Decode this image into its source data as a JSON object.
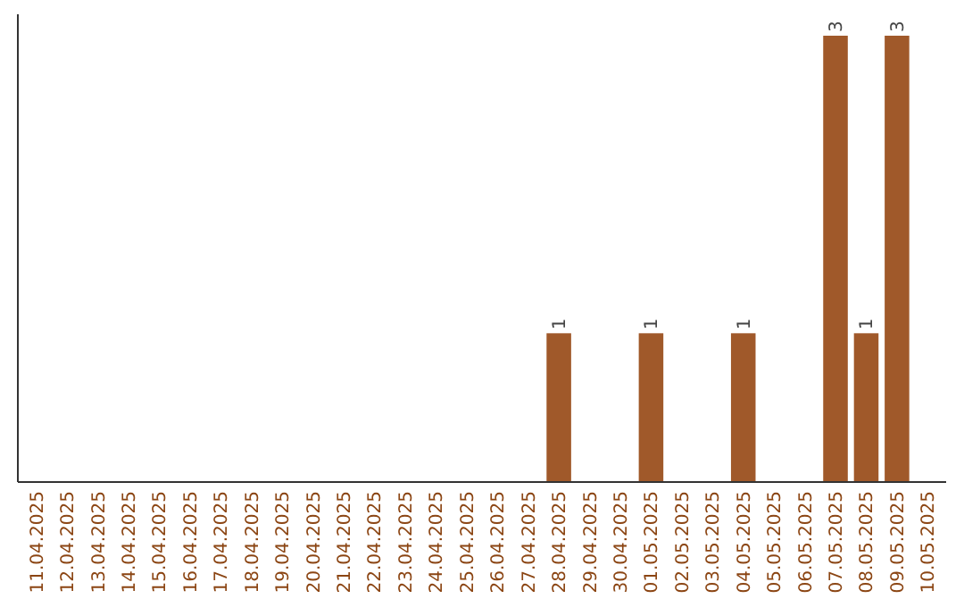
{
  "chart_data": {
    "type": "bar",
    "categories": [
      "11.04.2025",
      "12.04.2025",
      "13.04.2025",
      "14.04.2025",
      "15.04.2025",
      "16.04.2025",
      "17.04.2025",
      "18.04.2025",
      "19.04.2025",
      "20.04.2025",
      "21.04.2025",
      "22.04.2025",
      "23.04.2025",
      "24.04.2025",
      "25.04.2025",
      "26.04.2025",
      "27.04.2025",
      "28.04.2025",
      "29.04.2025",
      "30.04.2025",
      "01.05.2025",
      "02.05.2025",
      "03.05.2025",
      "04.05.2025",
      "05.05.2025",
      "06.05.2025",
      "07.05.2025",
      "08.05.2025",
      "09.05.2025",
      "10.05.2025"
    ],
    "values": [
      null,
      null,
      null,
      null,
      null,
      null,
      null,
      null,
      null,
      null,
      null,
      null,
      null,
      null,
      null,
      null,
      null,
      1,
      null,
      null,
      1,
      null,
      null,
      1,
      null,
      null,
      3,
      1,
      3,
      null
    ],
    "data_labels": true,
    "color": "#a0592a",
    "tick_labels": "x"
  }
}
